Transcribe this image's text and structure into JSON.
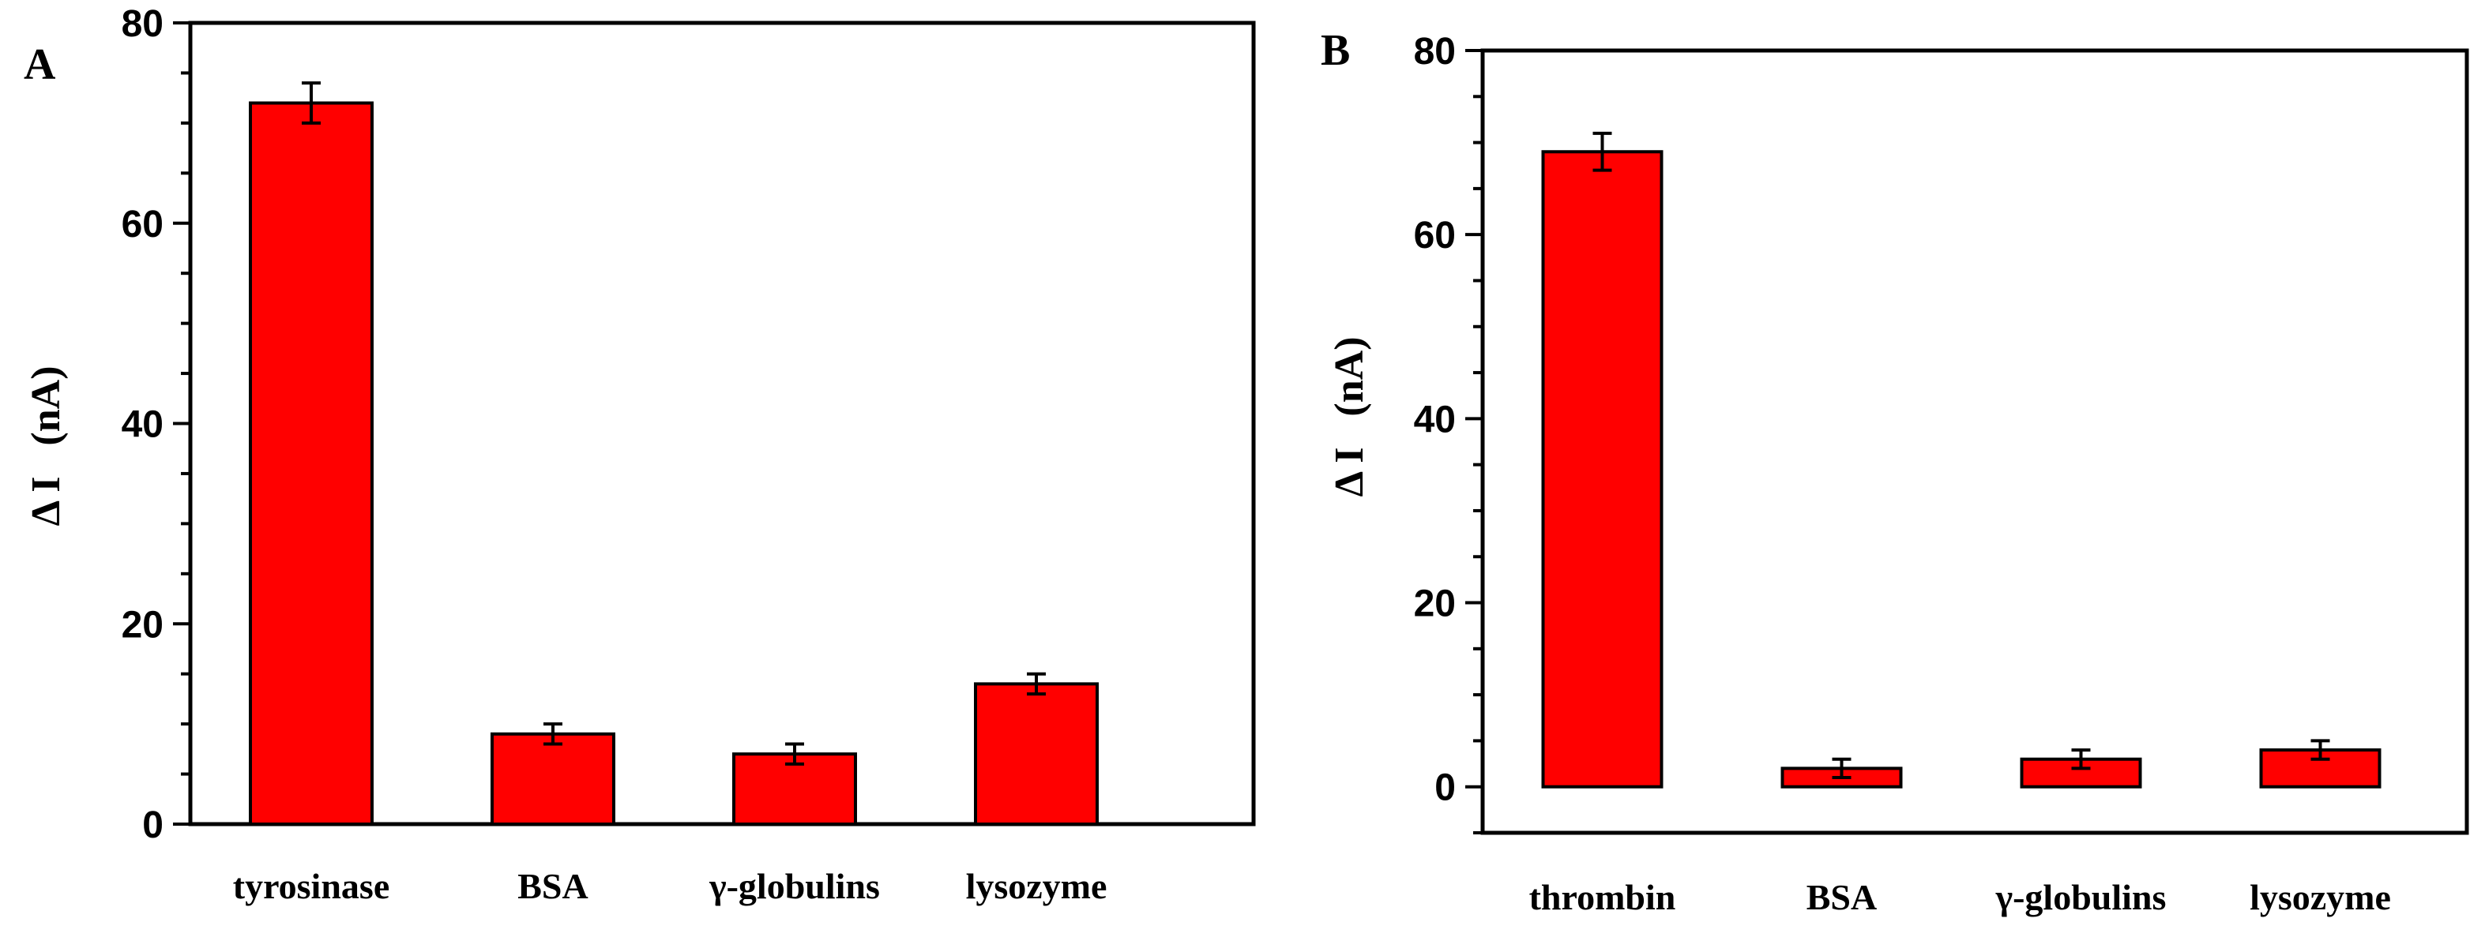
{
  "colors": {
    "bar": "#ff0000",
    "axis": "#000000",
    "background": "#ffffff"
  },
  "chart_data": [
    {
      "type": "bar",
      "panel_label": "A",
      "categories": [
        "tyrosinase",
        "BSA",
        "γ-globulins",
        "lysozyme"
      ],
      "values": [
        72,
        9,
        7,
        14
      ],
      "errors": [
        2,
        1,
        1,
        1
      ],
      "ylabel": "Δ I   (nA)",
      "xlabel": "",
      "ylim": [
        0,
        80
      ],
      "yticks": [
        0,
        20,
        40,
        60,
        80
      ],
      "yminor_step": 5
    },
    {
      "type": "bar",
      "panel_label": "B",
      "categories": [
        "thrombin",
        "BSA",
        "γ-globulins",
        "lysozyme"
      ],
      "values": [
        69,
        2,
        3,
        4
      ],
      "errors": [
        2,
        1,
        1,
        1
      ],
      "ylabel": "Δ I   (nA)",
      "xlabel": "",
      "ylim": [
        -5,
        80
      ],
      "yticks": [
        0,
        20,
        40,
        60,
        80
      ],
      "yminor_step": 5
    }
  ]
}
